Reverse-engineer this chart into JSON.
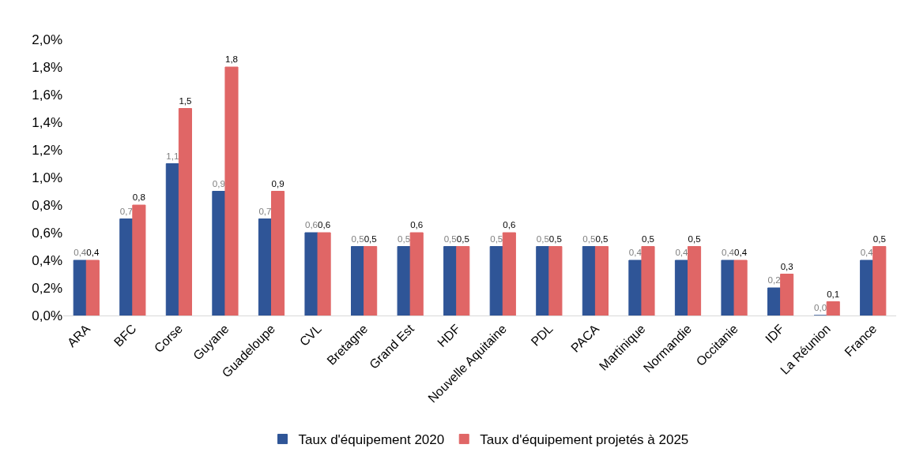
{
  "chart_data": {
    "type": "bar",
    "categories": [
      "ARA",
      "BFC",
      "Corse",
      "Guyane",
      "Guadeloupe",
      "CVL",
      "Bretagne",
      "Grand Est",
      "HDF",
      "Nouvelle Aquitaine",
      "PDL",
      "PACA",
      "Martinique",
      "Normandie",
      "Occitanie",
      "IDF",
      "La Réunion",
      "France"
    ],
    "series": [
      {
        "name": "Taux d'équipement 2020",
        "color": "#2f5597",
        "values": [
          0.4,
          0.7,
          1.1,
          0.9,
          0.7,
          0.6,
          0.5,
          0.5,
          0.5,
          0.5,
          0.5,
          0.5,
          0.4,
          0.4,
          0.4,
          0.2,
          0.0,
          0.4
        ],
        "value_labels": [
          "0,4",
          "0,7",
          "1,1",
          "0,9",
          "0,7",
          "0,6",
          "0,5",
          "0,5",
          "0,5",
          "0,5",
          "0,5",
          "0,5",
          "0,4",
          "0,4",
          "0,4",
          "0,2",
          "0,0",
          "0,4"
        ]
      },
      {
        "name": "Taux d'équipement projetés à 2025",
        "color": "#e06666",
        "values": [
          0.4,
          0.8,
          1.5,
          1.8,
          0.9,
          0.6,
          0.5,
          0.6,
          0.5,
          0.6,
          0.5,
          0.5,
          0.5,
          0.5,
          0.4,
          0.3,
          0.1,
          0.5
        ],
        "value_labels": [
          "0,4",
          "0,8",
          "1,5",
          "1,8",
          "0,9",
          "0,6",
          "0,5",
          "0,6",
          "0,5",
          "0,6",
          "0,5",
          "0,5",
          "0,5",
          "0,5",
          "0,4",
          "0,3",
          "0,1",
          "0,5"
        ]
      }
    ],
    "ylim": [
      0,
      2.0
    ],
    "yticks": [
      {
        "value": 0,
        "label": "0,0%"
      },
      {
        "value": 0.2,
        "label": "0,2%"
      },
      {
        "value": 0.4,
        "label": "0,4%"
      },
      {
        "value": 0.6,
        "label": "0,6%"
      },
      {
        "value": 0.8,
        "label": "0,8%"
      },
      {
        "value": 1.0,
        "label": "1,0%"
      },
      {
        "value": 1.2,
        "label": "1,2%"
      },
      {
        "value": 1.4,
        "label": "1,4%"
      },
      {
        "value": 1.6,
        "label": "1,6%"
      },
      {
        "value": 1.8,
        "label": "1,8%"
      },
      {
        "value": 2.0,
        "label": "2,0%"
      }
    ],
    "legend": "bottom",
    "grid": false
  }
}
